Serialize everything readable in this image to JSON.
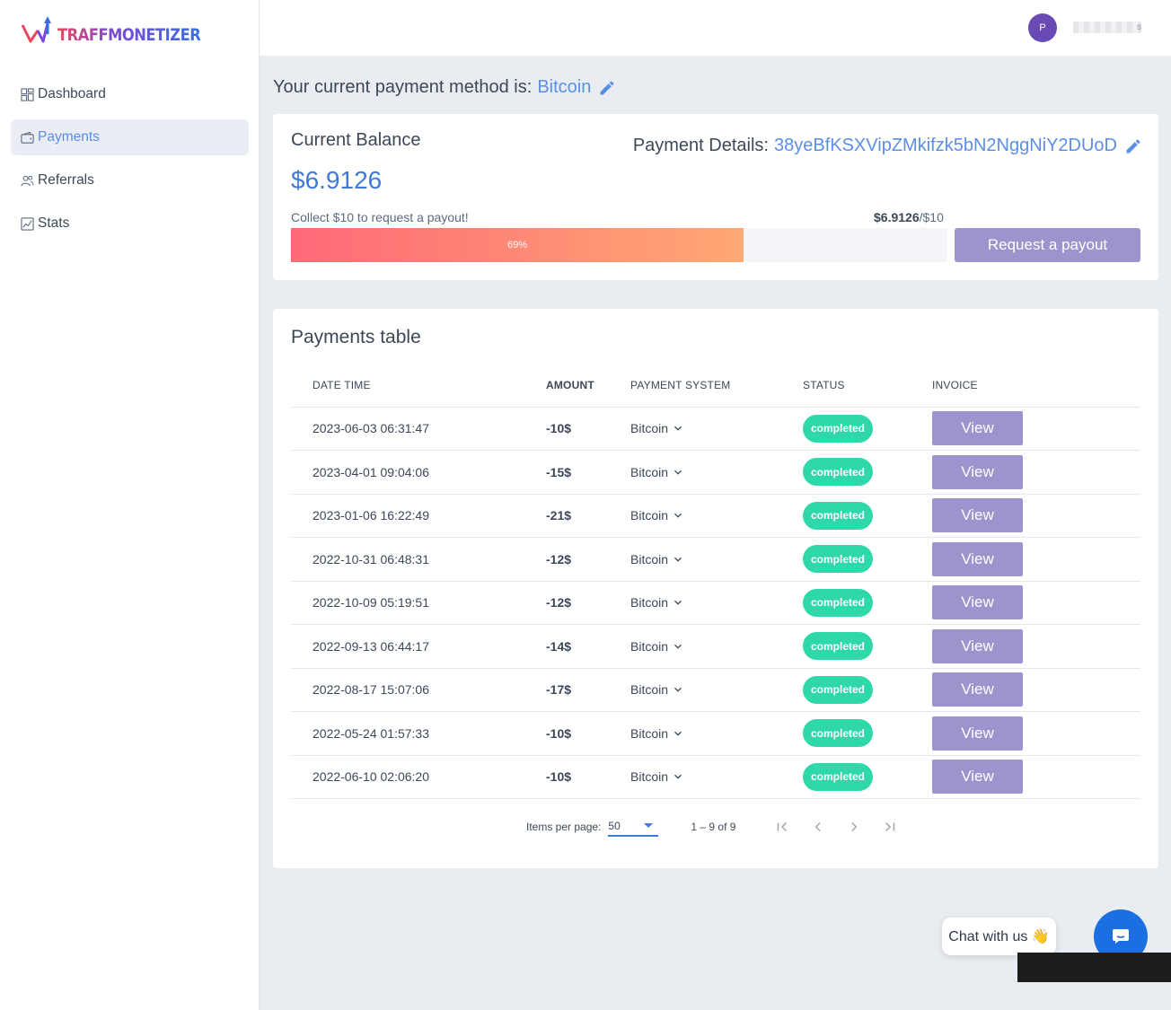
{
  "app": {
    "logo_text": "TRAFFMONETIZER"
  },
  "sidebar": {
    "items": [
      {
        "label": "Dashboard",
        "icon": "dashboard-icon"
      },
      {
        "label": "Payments",
        "icon": "wallet-icon",
        "active": true
      },
      {
        "label": "Referrals",
        "icon": "users-icon"
      },
      {
        "label": "Stats",
        "icon": "chart-icon"
      }
    ]
  },
  "header": {
    "avatar_initial": "P",
    "username": "s"
  },
  "payment_method": {
    "prefix": "Your current payment method is:",
    "method": "Bitcoin"
  },
  "balance": {
    "title": "Current Balance",
    "amount": "$6.9126",
    "details_label": "Payment Details:",
    "address": "38yeBfKSXVipZMkifzk5bN2NggNiY2DUoD",
    "collect_text": "Collect $10 to request a payout!",
    "progress_current": "$6.9126",
    "progress_target": "/$10",
    "progress_percent_label": "69%",
    "progress_fraction": 0.69,
    "request_button": "Request a payout"
  },
  "payments_table": {
    "title": "Payments table",
    "columns": [
      "DATE TIME",
      "AMOUNT",
      "PAYMENT SYSTEM",
      "STATUS",
      "INVOICE"
    ],
    "rows": [
      {
        "date": "2023-06-03 06:31:47",
        "amount": "-10$",
        "system": "Bitcoin",
        "status": "completed",
        "invoice": "View"
      },
      {
        "date": "2023-04-01 09:04:06",
        "amount": "-15$",
        "system": "Bitcoin",
        "status": "completed",
        "invoice": "View"
      },
      {
        "date": "2023-01-06 16:22:49",
        "amount": "-21$",
        "system": "Bitcoin",
        "status": "completed",
        "invoice": "View"
      },
      {
        "date": "2022-10-31 06:48:31",
        "amount": "-12$",
        "system": "Bitcoin",
        "status": "completed",
        "invoice": "View"
      },
      {
        "date": "2022-10-09 05:19:51",
        "amount": "-12$",
        "system": "Bitcoin",
        "status": "completed",
        "invoice": "View"
      },
      {
        "date": "2022-09-13 06:44:17",
        "amount": "-14$",
        "system": "Bitcoin",
        "status": "completed",
        "invoice": "View"
      },
      {
        "date": "2022-08-17 15:07:06",
        "amount": "-17$",
        "system": "Bitcoin",
        "status": "completed",
        "invoice": "View"
      },
      {
        "date": "2022-05-24 01:57:33",
        "amount": "-10$",
        "system": "Bitcoin",
        "status": "completed",
        "invoice": "View"
      },
      {
        "date": "2022-06-10 02:06:20",
        "amount": "-10$",
        "system": "Bitcoin",
        "status": "completed",
        "invoice": "View"
      }
    ],
    "paginator": {
      "items_per_page_label": "Items per page:",
      "items_per_page_value": "50",
      "range": "1 – 9 of 9"
    }
  },
  "chat": {
    "label": "Chat with us 👋"
  },
  "colors": {
    "accent": "#5b8ee6",
    "button": "#9d93cd",
    "status_completed": "#2ed8a9",
    "chat_button": "#1c6fe0"
  }
}
